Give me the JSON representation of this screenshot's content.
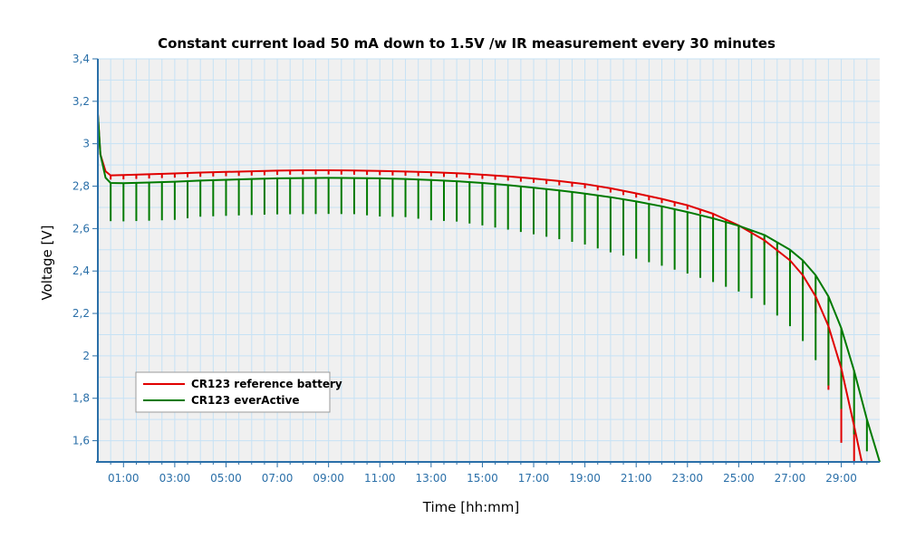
{
  "chart_data": {
    "type": "line",
    "title": "Constant current load 50 mA down to 1.5V /w IR measurement every 30 minutes",
    "xlabel": "Time [hh:mm]",
    "ylabel": "Voltage [V]",
    "x_unit": "hours",
    "xlim": [
      0,
      30.5
    ],
    "ylim": [
      1.5,
      3.4
    ],
    "x_ticks": [
      "01:00",
      "03:00",
      "05:00",
      "07:00",
      "09:00",
      "11:00",
      "13:00",
      "15:00",
      "17:00",
      "19:00",
      "21:00",
      "23:00",
      "25:00",
      "27:00",
      "29:00"
    ],
    "y_ticks": [
      "1,6",
      "1,8",
      "2",
      "2,2",
      "2,4",
      "2,6",
      "2,8",
      "3",
      "3,2",
      "3,4"
    ],
    "grid": true,
    "legend_position": "bottom-left",
    "ir_pulse_interval_hours": 0.5,
    "series": [
      {
        "name": "CR123 reference battery",
        "color": "#e00000",
        "x": [
          0,
          0.1,
          0.3,
          0.5,
          1,
          2,
          3,
          4,
          5,
          6,
          7,
          8,
          9,
          10,
          11,
          12,
          13,
          14,
          15,
          16,
          17,
          18,
          19,
          20,
          21,
          22,
          23,
          24,
          25,
          26,
          27,
          27.5,
          28,
          28.5,
          29,
          29.5,
          29.8
        ],
        "y": [
          3.14,
          2.95,
          2.87,
          2.851,
          2.852,
          2.856,
          2.86,
          2.864,
          2.867,
          2.87,
          2.873,
          2.875,
          2.875,
          2.874,
          2.872,
          2.869,
          2.866,
          2.861,
          2.854,
          2.846,
          2.836,
          2.824,
          2.81,
          2.79,
          2.766,
          2.74,
          2.71,
          2.67,
          2.615,
          2.545,
          2.45,
          2.38,
          2.28,
          2.14,
          1.94,
          1.67,
          1.5
        ],
        "pulse_drop": [
          0.02,
          0.02,
          0.02,
          0.02,
          0.02,
          0.02,
          0.02,
          0.02,
          0.02,
          0.02,
          0.02,
          0.02,
          0.02,
          0.02,
          0.02,
          0.02,
          0.02,
          0.02,
          0.02,
          0.02,
          0.02,
          0.02,
          0.02,
          0.02,
          0.02,
          0.02,
          0.02,
          0.02,
          0.02,
          0.02,
          0.03,
          0.05,
          0.08,
          0.3,
          0.35,
          0.2,
          0.1
        ]
      },
      {
        "name": "CR123 everActive",
        "color": "#007a00",
        "x": [
          0,
          0.1,
          0.3,
          0.5,
          1,
          2,
          3,
          4,
          5,
          6,
          7,
          8,
          9,
          10,
          11,
          12,
          13,
          14,
          15,
          16,
          17,
          18,
          19,
          20,
          21,
          22,
          23,
          24,
          25,
          26,
          27,
          27.5,
          28,
          28.5,
          29,
          29.5,
          30,
          30.5
        ],
        "y": [
          3.14,
          2.95,
          2.84,
          2.815,
          2.814,
          2.817,
          2.821,
          2.826,
          2.83,
          2.834,
          2.837,
          2.838,
          2.839,
          2.838,
          2.837,
          2.834,
          2.829,
          2.823,
          2.815,
          2.805,
          2.793,
          2.78,
          2.765,
          2.748,
          2.728,
          2.705,
          2.678,
          2.648,
          2.613,
          2.57,
          2.5,
          2.45,
          2.38,
          2.28,
          2.13,
          1.93,
          1.7,
          1.5
        ],
        "pulse_drop": [
          0.0,
          0.17,
          0.18,
          0.18,
          0.18,
          0.18,
          0.18,
          0.17,
          0.17,
          0.17,
          0.17,
          0.17,
          0.17,
          0.17,
          0.18,
          0.18,
          0.19,
          0.19,
          0.2,
          0.21,
          0.22,
          0.23,
          0.24,
          0.26,
          0.27,
          0.28,
          0.29,
          0.3,
          0.31,
          0.33,
          0.36,
          0.38,
          0.4,
          0.42,
          0.38,
          0.3,
          0.15,
          0.05
        ]
      }
    ]
  }
}
